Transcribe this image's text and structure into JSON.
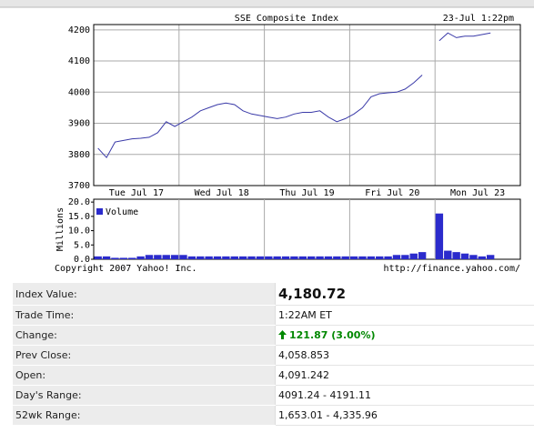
{
  "chart_data": [
    {
      "type": "line",
      "title": "SSE Composite Index",
      "timestamp": "23-Jul 1:22pm",
      "categories": [
        null,
        null,
        null,
        null,
        null,
        "Tue Jul 17",
        null,
        null,
        null,
        null,
        null,
        null,
        null,
        null,
        null,
        "Wed Jul 18",
        null,
        null,
        null,
        null,
        null,
        null,
        null,
        null,
        null,
        "Thu Jul 19",
        null,
        null,
        null,
        null,
        null,
        null,
        null,
        null,
        null,
        "Fri Jul 20",
        null,
        null,
        null,
        null,
        null,
        null,
        null,
        null,
        null,
        "Mon Jul 23",
        null,
        null,
        null,
        null
      ],
      "values": [
        3820,
        3790,
        3840,
        3845,
        3850,
        3852,
        3855,
        3870,
        3905,
        3890,
        3905,
        3920,
        3940,
        3950,
        3960,
        3965,
        3960,
        3940,
        3930,
        3925,
        3920,
        3915,
        3920,
        3930,
        3935,
        3935,
        3940,
        3920,
        3905,
        3915,
        3930,
        3950,
        3985,
        3995,
        3998,
        4000,
        4010,
        4030,
        4055,
        null,
        4165,
        4190,
        4175,
        4180,
        4180,
        4185,
        4190,
        null,
        null,
        null
      ],
      "color": "#3a3aa8",
      "ylim": [
        3700,
        4217
      ],
      "yticks": [
        3700,
        3800,
        3900,
        4000,
        4100,
        4200
      ],
      "grid": true
    },
    {
      "type": "bar",
      "ylabel": "Millions",
      "categories": [
        null,
        null,
        null,
        null,
        null,
        null,
        null,
        null,
        null,
        null,
        null,
        null,
        null,
        null,
        null,
        null,
        null,
        null,
        null,
        null,
        null,
        null,
        null,
        null,
        null,
        null,
        null,
        null,
        null,
        null,
        null,
        null,
        null,
        null,
        null,
        null,
        null,
        null,
        null,
        null,
        null,
        null,
        null,
        null,
        null,
        null,
        null,
        null,
        null,
        null
      ],
      "series": [
        {
          "name": "Volume",
          "color": "#2b2bcc",
          "values": [
            1,
            1,
            0.5,
            0.5,
            0.5,
            1,
            1.5,
            1.5,
            1.5,
            1.5,
            1.5,
            1,
            1,
            1,
            1,
            1,
            1,
            1,
            1,
            1,
            1,
            1,
            1,
            1,
            1,
            1,
            1,
            1,
            1,
            1,
            1,
            1,
            1,
            1,
            1,
            1.5,
            1.5,
            2,
            2.5,
            null,
            16,
            3,
            2.5,
            2,
            1.5,
            1,
            1.5,
            null,
            null,
            null
          ]
        }
      ],
      "ylim": [
        0,
        21
      ],
      "yticks": [
        {
          "value": 0,
          "label": "0.0"
        },
        {
          "value": 5,
          "label": "5.0"
        },
        {
          "value": 10,
          "label": "10.0"
        },
        {
          "value": 15,
          "label": "15.0"
        },
        {
          "value": 20,
          "label": "20.0"
        }
      ],
      "grid": false
    }
  ],
  "footer": {
    "copyright": "Copyright 2007 Yahoo! Inc.",
    "url": "http://finance.yahoo.com/"
  },
  "quote_table": {
    "rows": [
      [
        "Index Value:",
        "4,180.72"
      ],
      [
        "Trade Time:",
        "1:22AM ET"
      ],
      [
        "Change:",
        "121.87 (3.00%)"
      ],
      [
        "Prev Close:",
        "4,058.853"
      ],
      [
        "Open:",
        "4,091.242"
      ],
      [
        "Day's Range:",
        "4091.24 - 4191.11"
      ],
      [
        "52wk Range:",
        "1,653.01 - 4,335.96"
      ]
    ]
  }
}
